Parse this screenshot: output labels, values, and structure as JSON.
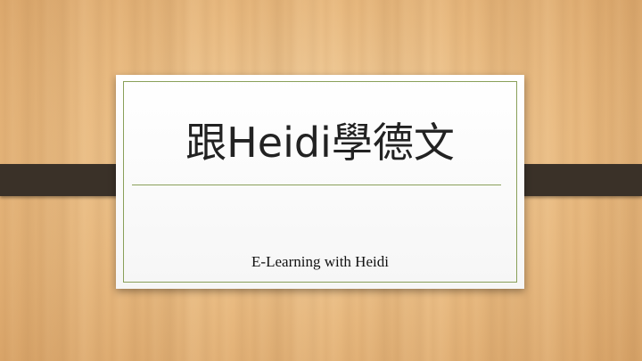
{
  "slide": {
    "title": "跟Heidi學德文",
    "subtitle": "E-Learning with Heidi"
  },
  "colors": {
    "band": "#3a3128",
    "frame": "#8aa05a",
    "card": "#ffffff"
  }
}
